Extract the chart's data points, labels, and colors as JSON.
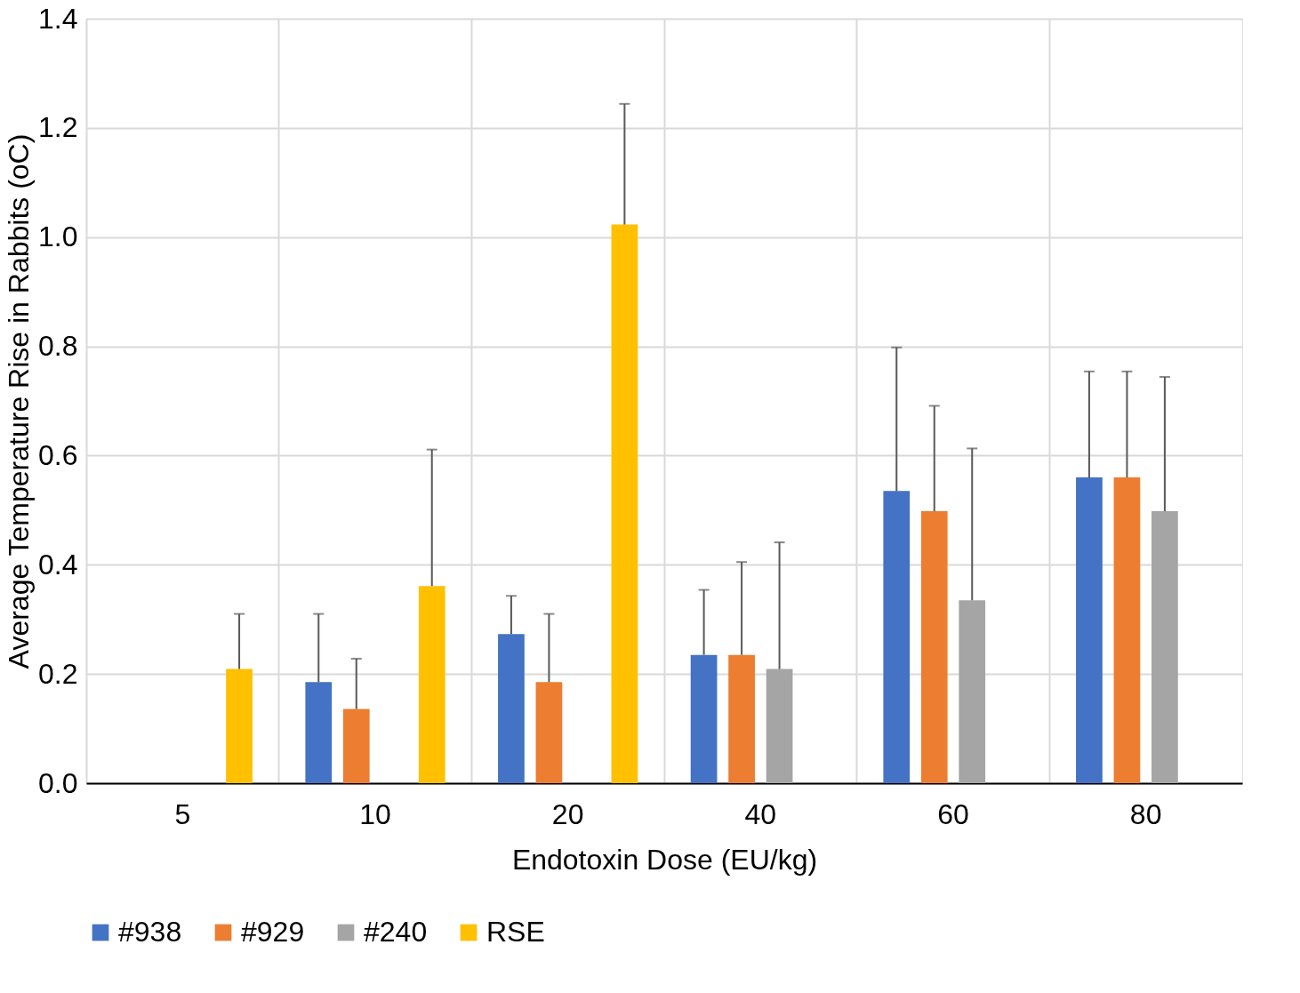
{
  "chart_data": {
    "type": "bar",
    "xlabel": "Endotoxin Dose (EU/kg)",
    "ylabel": "Average Temperature Rise in Rabbits (oC)",
    "categories": [
      "5",
      "10",
      "20",
      "40",
      "60",
      "80"
    ],
    "series": [
      {
        "name": "#938",
        "color": "#4472c4",
        "values": [
          null,
          0.185,
          0.273,
          0.235,
          0.535,
          0.56
        ],
        "errors": [
          null,
          [
            0.185,
            0.31
          ],
          [
            0.273,
            0.343
          ],
          [
            0.235,
            0.354
          ],
          [
            0.535,
            0.798
          ],
          [
            0.56,
            0.754
          ]
        ]
      },
      {
        "name": "#929",
        "color": "#ed7d31",
        "values": [
          null,
          0.136,
          0.185,
          0.235,
          0.498,
          0.56
        ],
        "errors": [
          null,
          [
            0.136,
            0.228
          ],
          [
            0.185,
            0.31
          ],
          [
            0.235,
            0.405
          ],
          [
            0.498,
            0.691
          ],
          [
            0.56,
            0.754
          ]
        ]
      },
      {
        "name": "#240",
        "color": "#a5a5a5",
        "values": [
          null,
          null,
          null,
          0.209,
          0.335,
          0.498
        ],
        "errors": [
          null,
          null,
          null,
          [
            0.209,
            0.441
          ],
          [
            0.335,
            0.613
          ],
          [
            0.498,
            0.744
          ]
        ]
      },
      {
        "name": "RSE",
        "color": "#ffc000",
        "values": [
          0.209,
          0.361,
          1.023,
          null,
          null,
          null
        ],
        "errors": [
          [
            0.209,
            0.31
          ],
          [
            0.361,
            0.611
          ],
          [
            1.023,
            1.244
          ],
          null,
          null,
          null
        ]
      }
    ],
    "ylim": [
      0,
      1.4
    ],
    "yticks": [
      {
        "value": 0,
        "label": "0.0"
      },
      {
        "value": 0.2,
        "label": "0.2"
      },
      {
        "value": 0.4,
        "label": "0.4"
      },
      {
        "value": 0.6,
        "label": "0.6"
      },
      {
        "value": 0.8,
        "label": "0.8"
      },
      {
        "value": 1,
        "label": "1.0"
      },
      {
        "value": 1.2,
        "label": "1.2"
      },
      {
        "value": 1.4,
        "label": "1.4"
      }
    ],
    "grid": true,
    "legend": "bottom"
  }
}
